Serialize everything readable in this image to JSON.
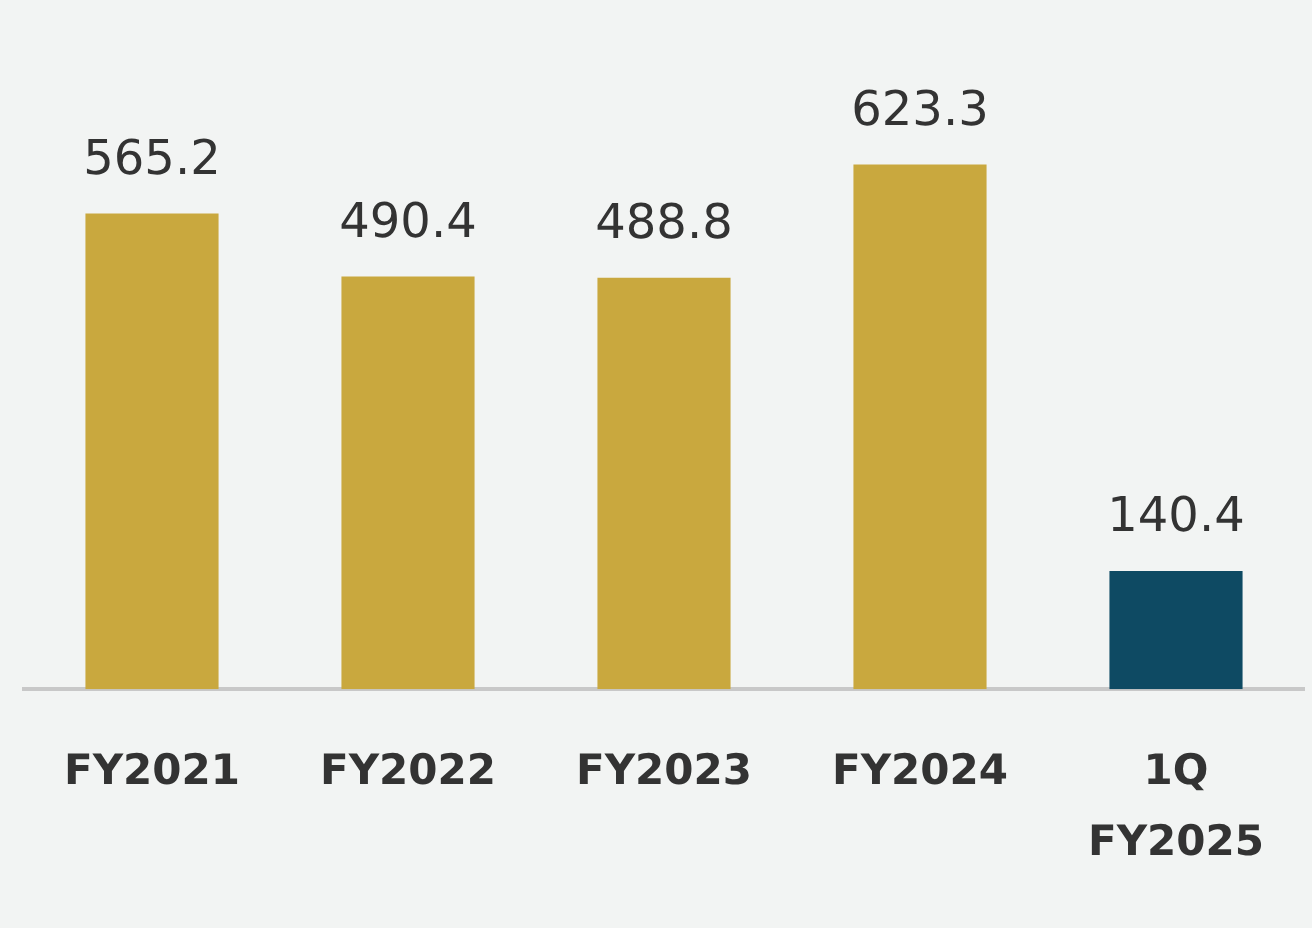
{
  "chart_data": {
    "type": "bar",
    "categories": [
      "FY2021",
      "FY2022",
      "FY2023",
      "FY2024",
      "1Q FY2025"
    ],
    "values": [
      565.2,
      490.4,
      488.8,
      623.3,
      140.4
    ],
    "colors": [
      "#c9a83e",
      "#c9a83e",
      "#c9a83e",
      "#c9a83e",
      "#0e4a63"
    ],
    "data_labels": true,
    "grid": false,
    "legend": false,
    "tick_labels": "x"
  }
}
